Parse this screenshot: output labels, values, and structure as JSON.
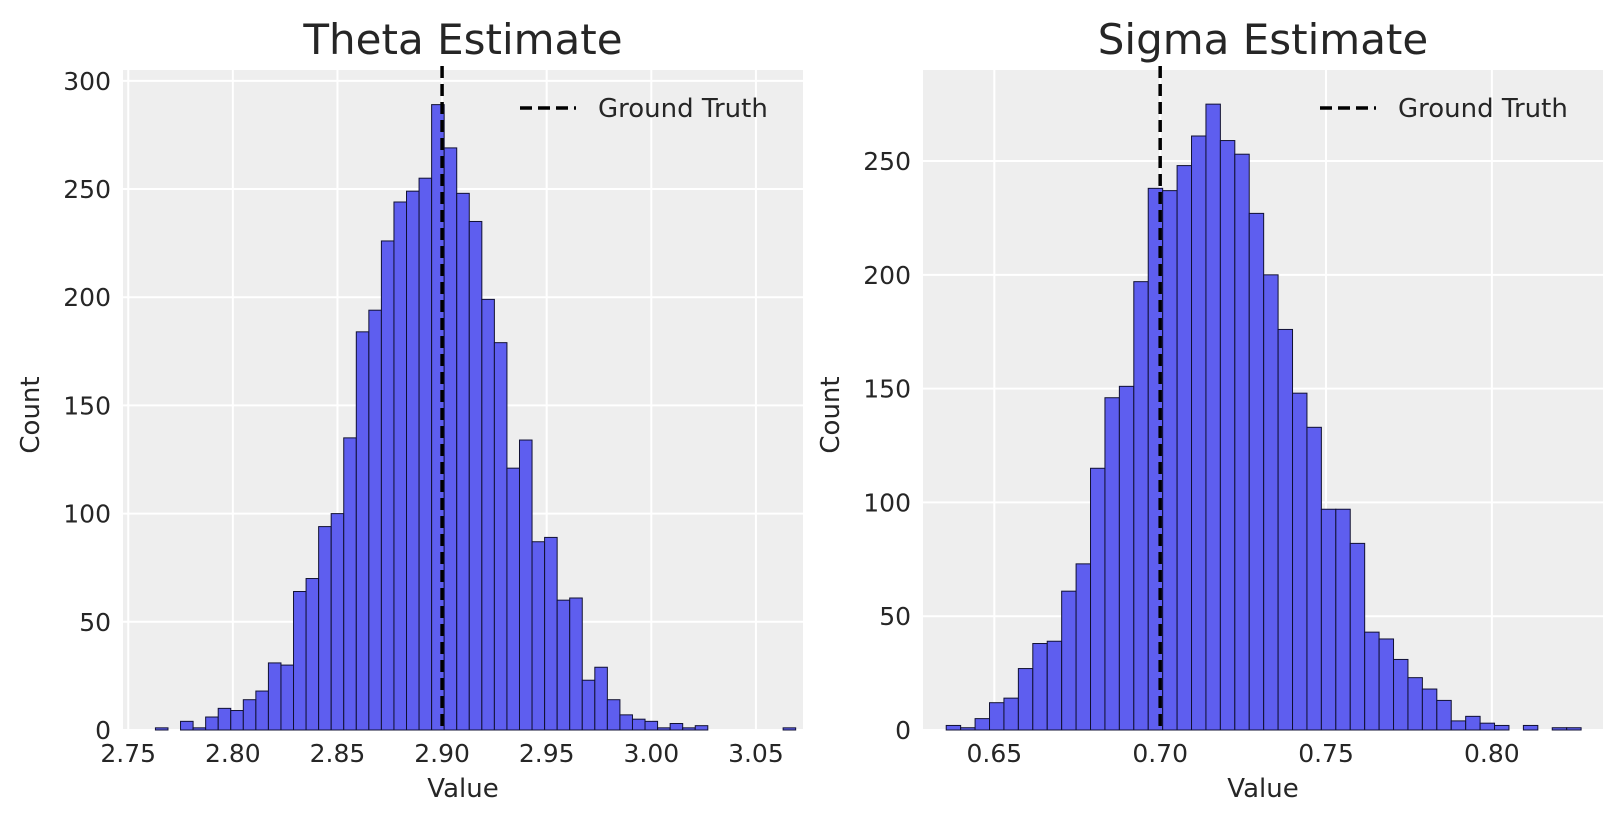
{
  "chart_data": [
    {
      "type": "bar",
      "title": "Theta Estimate",
      "xlabel": "Value",
      "ylabel": "Count",
      "xlim": [
        2.7475,
        3.0725
      ],
      "ylim": [
        0,
        305
      ],
      "xticks": [
        2.75,
        2.8,
        2.85,
        2.9,
        2.95,
        3.0,
        3.05
      ],
      "xtick_labels": [
        "2.75",
        "2.80",
        "2.85",
        "2.90",
        "2.95",
        "3.00",
        "3.05"
      ],
      "yticks": [
        0,
        50,
        100,
        150,
        200,
        250,
        300
      ],
      "ytick_labels": [
        "0",
        "50",
        "100",
        "150",
        "200",
        "250",
        "300"
      ],
      "grid": true,
      "bin_start": 2.763,
      "bin_width": 0.006,
      "values": [
        1,
        0,
        4,
        1,
        6,
        10,
        9,
        14,
        18,
        31,
        30,
        64,
        70,
        94,
        100,
        135,
        184,
        194,
        226,
        244,
        249,
        255,
        289,
        269,
        248,
        235,
        199,
        179,
        121,
        134,
        87,
        89,
        60,
        61,
        23,
        29,
        14,
        7,
        5,
        4,
        1,
        3,
        1,
        2,
        0,
        0,
        0,
        0,
        0,
        0,
        1
      ],
      "bar_color": "#5555ee",
      "ground_truth": 2.9,
      "legend": {
        "label": "Ground Truth",
        "position": "top-right"
      }
    },
    {
      "type": "bar",
      "title": "Sigma Estimate",
      "xlabel": "Value",
      "ylabel": "Count",
      "xlim": [
        0.6285,
        0.8335
      ],
      "ylim": [
        0,
        290
      ],
      "xticks": [
        0.65,
        0.7,
        0.75,
        0.8
      ],
      "xtick_labels": [
        "0.65",
        "0.70",
        "0.75",
        "0.80"
      ],
      "yticks": [
        0,
        50,
        100,
        150,
        200,
        250
      ],
      "ytick_labels": [
        "0",
        "50",
        "100",
        "150",
        "200",
        "250"
      ],
      "grid": true,
      "bin_start": 0.6355,
      "bin_width": 0.00435,
      "values": [
        2,
        1,
        5,
        12,
        14,
        27,
        38,
        39,
        61,
        73,
        115,
        146,
        151,
        197,
        238,
        237,
        248,
        261,
        275,
        259,
        253,
        227,
        200,
        176,
        148,
        133,
        97,
        97,
        82,
        43,
        40,
        31,
        23,
        18,
        13,
        4,
        6,
        3,
        2,
        0,
        2,
        0,
        1,
        1
      ],
      "bar_color": "#5555ee",
      "ground_truth": 0.7,
      "legend": {
        "label": "Ground Truth",
        "position": "top-right"
      }
    }
  ]
}
